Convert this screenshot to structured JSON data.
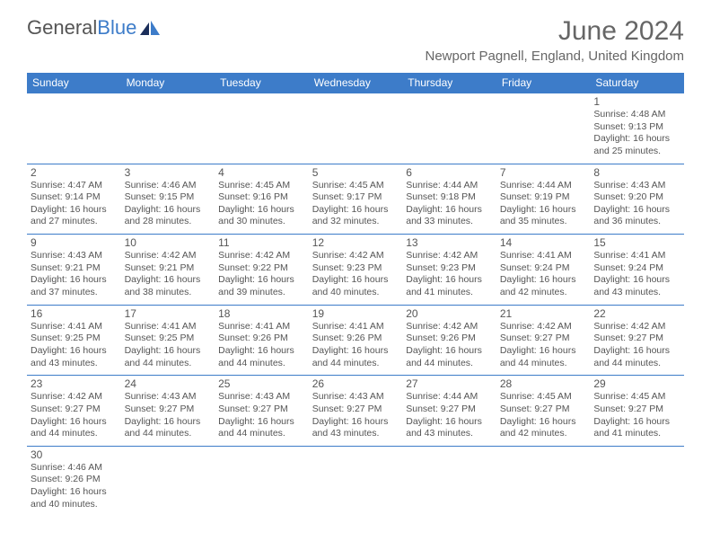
{
  "logo": {
    "text1": "General",
    "text2": "Blue"
  },
  "title": "June 2024",
  "location": "Newport Pagnell, England, United Kingdom",
  "colors": {
    "header_bg": "#3d7cc9",
    "header_text": "#ffffff",
    "border": "#3d7cc9",
    "text": "#555555",
    "background": "#ffffff"
  },
  "weekdays": [
    "Sunday",
    "Monday",
    "Tuesday",
    "Wednesday",
    "Thursday",
    "Friday",
    "Saturday"
  ],
  "weeks": [
    [
      null,
      null,
      null,
      null,
      null,
      null,
      {
        "d": "1",
        "sr": "Sunrise: 4:48 AM",
        "ss": "Sunset: 9:13 PM",
        "dl": "Daylight: 16 hours and 25 minutes."
      }
    ],
    [
      {
        "d": "2",
        "sr": "Sunrise: 4:47 AM",
        "ss": "Sunset: 9:14 PM",
        "dl": "Daylight: 16 hours and 27 minutes."
      },
      {
        "d": "3",
        "sr": "Sunrise: 4:46 AM",
        "ss": "Sunset: 9:15 PM",
        "dl": "Daylight: 16 hours and 28 minutes."
      },
      {
        "d": "4",
        "sr": "Sunrise: 4:45 AM",
        "ss": "Sunset: 9:16 PM",
        "dl": "Daylight: 16 hours and 30 minutes."
      },
      {
        "d": "5",
        "sr": "Sunrise: 4:45 AM",
        "ss": "Sunset: 9:17 PM",
        "dl": "Daylight: 16 hours and 32 minutes."
      },
      {
        "d": "6",
        "sr": "Sunrise: 4:44 AM",
        "ss": "Sunset: 9:18 PM",
        "dl": "Daylight: 16 hours and 33 minutes."
      },
      {
        "d": "7",
        "sr": "Sunrise: 4:44 AM",
        "ss": "Sunset: 9:19 PM",
        "dl": "Daylight: 16 hours and 35 minutes."
      },
      {
        "d": "8",
        "sr": "Sunrise: 4:43 AM",
        "ss": "Sunset: 9:20 PM",
        "dl": "Daylight: 16 hours and 36 minutes."
      }
    ],
    [
      {
        "d": "9",
        "sr": "Sunrise: 4:43 AM",
        "ss": "Sunset: 9:21 PM",
        "dl": "Daylight: 16 hours and 37 minutes."
      },
      {
        "d": "10",
        "sr": "Sunrise: 4:42 AM",
        "ss": "Sunset: 9:21 PM",
        "dl": "Daylight: 16 hours and 38 minutes."
      },
      {
        "d": "11",
        "sr": "Sunrise: 4:42 AM",
        "ss": "Sunset: 9:22 PM",
        "dl": "Daylight: 16 hours and 39 minutes."
      },
      {
        "d": "12",
        "sr": "Sunrise: 4:42 AM",
        "ss": "Sunset: 9:23 PM",
        "dl": "Daylight: 16 hours and 40 minutes."
      },
      {
        "d": "13",
        "sr": "Sunrise: 4:42 AM",
        "ss": "Sunset: 9:23 PM",
        "dl": "Daylight: 16 hours and 41 minutes."
      },
      {
        "d": "14",
        "sr": "Sunrise: 4:41 AM",
        "ss": "Sunset: 9:24 PM",
        "dl": "Daylight: 16 hours and 42 minutes."
      },
      {
        "d": "15",
        "sr": "Sunrise: 4:41 AM",
        "ss": "Sunset: 9:24 PM",
        "dl": "Daylight: 16 hours and 43 minutes."
      }
    ],
    [
      {
        "d": "16",
        "sr": "Sunrise: 4:41 AM",
        "ss": "Sunset: 9:25 PM",
        "dl": "Daylight: 16 hours and 43 minutes."
      },
      {
        "d": "17",
        "sr": "Sunrise: 4:41 AM",
        "ss": "Sunset: 9:25 PM",
        "dl": "Daylight: 16 hours and 44 minutes."
      },
      {
        "d": "18",
        "sr": "Sunrise: 4:41 AM",
        "ss": "Sunset: 9:26 PM",
        "dl": "Daylight: 16 hours and 44 minutes."
      },
      {
        "d": "19",
        "sr": "Sunrise: 4:41 AM",
        "ss": "Sunset: 9:26 PM",
        "dl": "Daylight: 16 hours and 44 minutes."
      },
      {
        "d": "20",
        "sr": "Sunrise: 4:42 AM",
        "ss": "Sunset: 9:26 PM",
        "dl": "Daylight: 16 hours and 44 minutes."
      },
      {
        "d": "21",
        "sr": "Sunrise: 4:42 AM",
        "ss": "Sunset: 9:27 PM",
        "dl": "Daylight: 16 hours and 44 minutes."
      },
      {
        "d": "22",
        "sr": "Sunrise: 4:42 AM",
        "ss": "Sunset: 9:27 PM",
        "dl": "Daylight: 16 hours and 44 minutes."
      }
    ],
    [
      {
        "d": "23",
        "sr": "Sunrise: 4:42 AM",
        "ss": "Sunset: 9:27 PM",
        "dl": "Daylight: 16 hours and 44 minutes."
      },
      {
        "d": "24",
        "sr": "Sunrise: 4:43 AM",
        "ss": "Sunset: 9:27 PM",
        "dl": "Daylight: 16 hours and 44 minutes."
      },
      {
        "d": "25",
        "sr": "Sunrise: 4:43 AM",
        "ss": "Sunset: 9:27 PM",
        "dl": "Daylight: 16 hours and 44 minutes."
      },
      {
        "d": "26",
        "sr": "Sunrise: 4:43 AM",
        "ss": "Sunset: 9:27 PM",
        "dl": "Daylight: 16 hours and 43 minutes."
      },
      {
        "d": "27",
        "sr": "Sunrise: 4:44 AM",
        "ss": "Sunset: 9:27 PM",
        "dl": "Daylight: 16 hours and 43 minutes."
      },
      {
        "d": "28",
        "sr": "Sunrise: 4:45 AM",
        "ss": "Sunset: 9:27 PM",
        "dl": "Daylight: 16 hours and 42 minutes."
      },
      {
        "d": "29",
        "sr": "Sunrise: 4:45 AM",
        "ss": "Sunset: 9:27 PM",
        "dl": "Daylight: 16 hours and 41 minutes."
      }
    ],
    [
      {
        "d": "30",
        "sr": "Sunrise: 4:46 AM",
        "ss": "Sunset: 9:26 PM",
        "dl": "Daylight: 16 hours and 40 minutes."
      },
      null,
      null,
      null,
      null,
      null,
      null
    ]
  ]
}
